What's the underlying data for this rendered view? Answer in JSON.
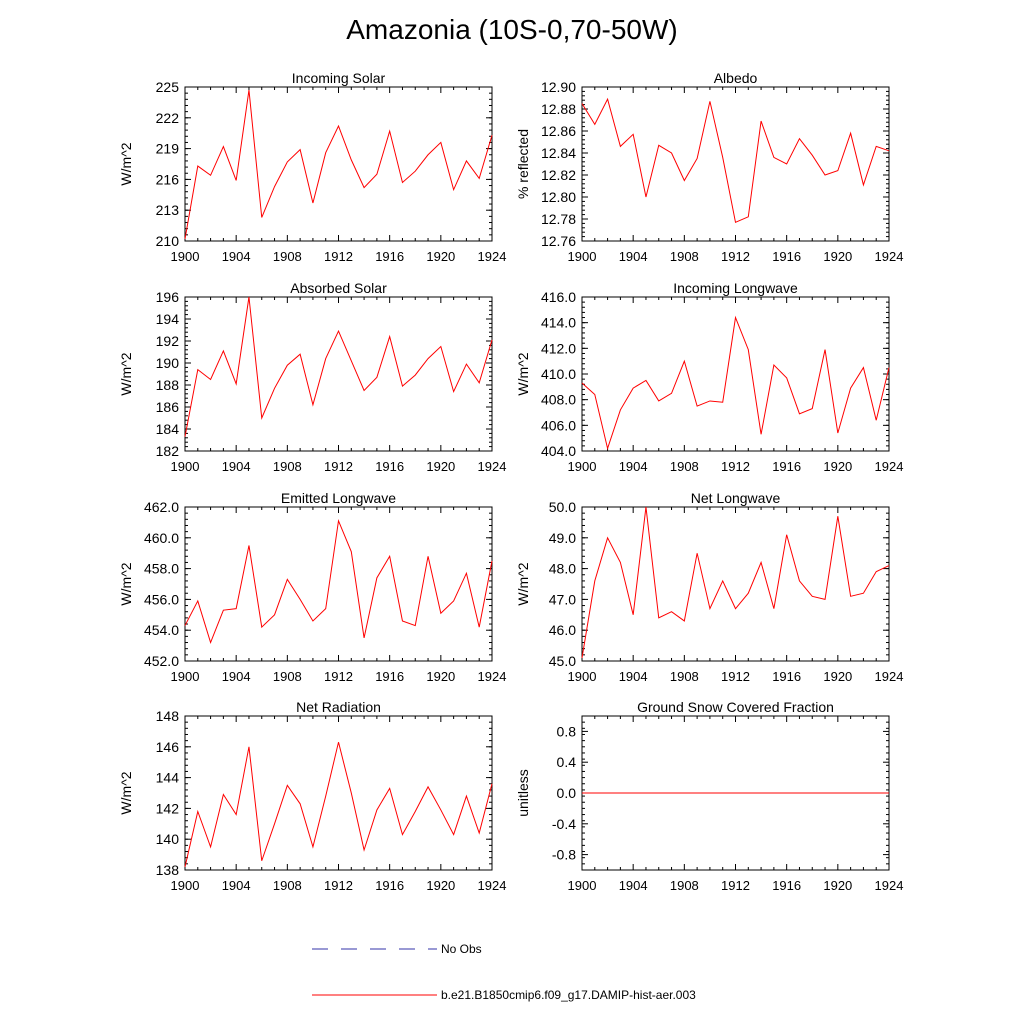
{
  "title": "Amazonia (10S-0,70-50W)",
  "legend": {
    "items": [
      {
        "label": "No Obs",
        "color": "#3333aa",
        "style": "dashed"
      },
      {
        "label": "b.e21.B1850cmip6.f09_g17.DAMIP-hist-aer.003",
        "color": "#ff0000",
        "style": "solid"
      }
    ]
  },
  "chart_data": [
    {
      "type": "line",
      "title": "Incoming Solar",
      "ylabel": "W/m^2",
      "ylim": [
        210,
        225
      ],
      "yticks": [
        "210",
        "213",
        "216",
        "219",
        "222",
        "225"
      ],
      "xlim": [
        1900,
        1924
      ],
      "xticks": [
        "1900",
        "1904",
        "1908",
        "1912",
        "1916",
        "1920",
        "1924"
      ],
      "x": [
        1900,
        1901,
        1902,
        1903,
        1904,
        1905,
        1906,
        1907,
        1908,
        1909,
        1910,
        1911,
        1912,
        1913,
        1914,
        1915,
        1916,
        1917,
        1918,
        1919,
        1920,
        1921,
        1922,
        1923,
        1924
      ],
      "series": [
        {
          "color": "#ff0000",
          "values": [
            210.2,
            217.3,
            216.4,
            219.2,
            215.9,
            224.7,
            212.3,
            215.3,
            217.7,
            218.9,
            213.7,
            218.6,
            221.2,
            217.9,
            215.2,
            216.5,
            220.7,
            215.7,
            216.8,
            218.4,
            219.6,
            215.0,
            217.8,
            216.1,
            220.3
          ]
        }
      ]
    },
    {
      "type": "line",
      "title": "Albedo",
      "ylabel": "% reflected",
      "ylim": [
        12.76,
        12.9
      ],
      "yticks": [
        "12.76",
        "12.78",
        "12.80",
        "12.82",
        "12.84",
        "12.86",
        "12.88",
        "12.90"
      ],
      "xlim": [
        1900,
        1924
      ],
      "xticks": [
        "1900",
        "1904",
        "1908",
        "1912",
        "1916",
        "1920",
        "1924"
      ],
      "x": [
        1900,
        1901,
        1902,
        1903,
        1904,
        1905,
        1906,
        1907,
        1908,
        1909,
        1910,
        1911,
        1912,
        1913,
        1914,
        1915,
        1916,
        1917,
        1918,
        1919,
        1920,
        1921,
        1922,
        1923,
        1924
      ],
      "series": [
        {
          "color": "#ff0000",
          "values": [
            12.885,
            12.866,
            12.889,
            12.846,
            12.857,
            12.8,
            12.847,
            12.84,
            12.815,
            12.835,
            12.887,
            12.836,
            12.777,
            12.782,
            12.869,
            12.836,
            12.83,
            12.853,
            12.838,
            12.82,
            12.824,
            12.858,
            12.811,
            12.846,
            12.842
          ]
        }
      ]
    },
    {
      "type": "line",
      "title": "Absorbed Solar",
      "ylabel": "W/m^2",
      "ylim": [
        182,
        196
      ],
      "yticks": [
        "182",
        "184",
        "186",
        "188",
        "190",
        "192",
        "194",
        "196"
      ],
      "xlim": [
        1900,
        1924
      ],
      "xticks": [
        "1900",
        "1904",
        "1908",
        "1912",
        "1916",
        "1920",
        "1924"
      ],
      "x": [
        1900,
        1901,
        1902,
        1903,
        1904,
        1905,
        1906,
        1907,
        1908,
        1909,
        1910,
        1911,
        1912,
        1913,
        1914,
        1915,
        1916,
        1917,
        1918,
        1919,
        1920,
        1921,
        1922,
        1923,
        1924
      ],
      "series": [
        {
          "color": "#ff0000",
          "values": [
            183.3,
            189.4,
            188.5,
            191.1,
            188.1,
            196.0,
            185.0,
            187.7,
            189.8,
            190.8,
            186.2,
            190.4,
            192.9,
            190.2,
            187.5,
            188.7,
            192.4,
            187.9,
            188.9,
            190.4,
            191.5,
            187.4,
            189.9,
            188.2,
            192.1
          ]
        }
      ]
    },
    {
      "type": "line",
      "title": "Incoming Longwave",
      "ylabel": "W/m^2",
      "ylim": [
        404,
        416
      ],
      "yticks": [
        "404.0",
        "406.0",
        "408.0",
        "410.0",
        "412.0",
        "414.0",
        "416.0"
      ],
      "xlim": [
        1900,
        1924
      ],
      "xticks": [
        "1900",
        "1904",
        "1908",
        "1912",
        "1916",
        "1920",
        "1924"
      ],
      "x": [
        1900,
        1901,
        1902,
        1903,
        1904,
        1905,
        1906,
        1907,
        1908,
        1909,
        1910,
        1911,
        1912,
        1913,
        1914,
        1915,
        1916,
        1917,
        1918,
        1919,
        1920,
        1921,
        1922,
        1923,
        1924
      ],
      "series": [
        {
          "color": "#ff0000",
          "values": [
            409.3,
            408.4,
            404.2,
            407.2,
            408.9,
            409.5,
            407.9,
            408.5,
            411.0,
            407.5,
            407.9,
            407.8,
            414.4,
            411.9,
            405.3,
            410.7,
            409.7,
            406.9,
            407.3,
            411.9,
            405.4,
            408.9,
            410.5,
            406.4,
            410.5
          ]
        }
      ]
    },
    {
      "type": "line",
      "title": "Emitted Longwave",
      "ylabel": "W/m^2",
      "ylim": [
        452,
        462
      ],
      "yticks": [
        "452.0",
        "454.0",
        "456.0",
        "458.0",
        "460.0",
        "462.0"
      ],
      "xlim": [
        1900,
        1924
      ],
      "xticks": [
        "1900",
        "1904",
        "1908",
        "1912",
        "1916",
        "1920",
        "1924"
      ],
      "x": [
        1900,
        1901,
        1902,
        1903,
        1904,
        1905,
        1906,
        1907,
        1908,
        1909,
        1910,
        1911,
        1912,
        1913,
        1914,
        1915,
        1916,
        1917,
        1918,
        1919,
        1920,
        1921,
        1922,
        1923,
        1924
      ],
      "series": [
        {
          "color": "#ff0000",
          "values": [
            454.3,
            455.9,
            453.2,
            455.3,
            455.4,
            459.5,
            454.2,
            455.0,
            457.3,
            456.0,
            454.6,
            455.4,
            461.1,
            459.1,
            453.5,
            457.4,
            458.8,
            454.6,
            454.3,
            458.8,
            455.1,
            455.9,
            457.7,
            454.2,
            458.5
          ]
        }
      ]
    },
    {
      "type": "line",
      "title": "Net Longwave",
      "ylabel": "W/m^2",
      "ylim": [
        45,
        50
      ],
      "yticks": [
        "45.0",
        "46.0",
        "47.0",
        "48.0",
        "49.0",
        "50.0"
      ],
      "xlim": [
        1900,
        1924
      ],
      "xticks": [
        "1900",
        "1904",
        "1908",
        "1912",
        "1916",
        "1920",
        "1924"
      ],
      "x": [
        1900,
        1901,
        1902,
        1903,
        1904,
        1905,
        1906,
        1907,
        1908,
        1909,
        1910,
        1911,
        1912,
        1913,
        1914,
        1915,
        1916,
        1917,
        1918,
        1919,
        1920,
        1921,
        1922,
        1923,
        1924
      ],
      "series": [
        {
          "color": "#ff0000",
          "values": [
            45.1,
            47.6,
            49.0,
            48.2,
            46.5,
            50.0,
            46.4,
            46.6,
            46.3,
            48.5,
            46.7,
            47.6,
            46.7,
            47.2,
            48.2,
            46.7,
            49.1,
            47.6,
            47.1,
            47.0,
            49.7,
            47.1,
            47.2,
            47.9,
            48.1
          ]
        }
      ]
    },
    {
      "type": "line",
      "title": "Net Radiation",
      "ylabel": "W/m^2",
      "ylim": [
        138,
        148
      ],
      "yticks": [
        "138",
        "140",
        "142",
        "144",
        "146",
        "148"
      ],
      "xlim": [
        1900,
        1924
      ],
      "xticks": [
        "1900",
        "1904",
        "1908",
        "1912",
        "1916",
        "1920",
        "1924"
      ],
      "x": [
        1900,
        1901,
        1902,
        1903,
        1904,
        1905,
        1906,
        1907,
        1908,
        1909,
        1910,
        1911,
        1912,
        1913,
        1914,
        1915,
        1916,
        1917,
        1918,
        1919,
        1920,
        1921,
        1922,
        1923,
        1924
      ],
      "series": [
        {
          "color": "#ff0000",
          "values": [
            138.2,
            141.8,
            139.5,
            142.9,
            141.6,
            146.0,
            138.6,
            141.0,
            143.5,
            142.3,
            139.5,
            142.8,
            146.3,
            143.0,
            139.3,
            141.9,
            143.3,
            140.3,
            141.8,
            143.4,
            141.9,
            140.3,
            142.8,
            140.4,
            143.6
          ]
        }
      ]
    },
    {
      "type": "line",
      "title": "Ground Snow Covered Fraction",
      "ylabel": "unitless",
      "ylim": [
        -1,
        1
      ],
      "yticks": [
        "-0.8",
        "-0.4",
        "0.0",
        "0.4",
        "0.8"
      ],
      "ytick_values": [
        -0.8,
        -0.4,
        0,
        0.4,
        0.8
      ],
      "xlim": [
        1900,
        1924
      ],
      "xticks": [
        "1900",
        "1904",
        "1908",
        "1912",
        "1916",
        "1920",
        "1924"
      ],
      "x": [
        1900,
        1901,
        1902,
        1903,
        1904,
        1905,
        1906,
        1907,
        1908,
        1909,
        1910,
        1911,
        1912,
        1913,
        1914,
        1915,
        1916,
        1917,
        1918,
        1919,
        1920,
        1921,
        1922,
        1923,
        1924
      ],
      "series": [
        {
          "color": "#ff0000",
          "values": [
            0,
            0,
            0,
            0,
            0,
            0,
            0,
            0,
            0,
            0,
            0,
            0,
            0,
            0,
            0,
            0,
            0,
            0,
            0,
            0,
            0,
            0,
            0,
            0,
            0
          ]
        }
      ]
    }
  ]
}
